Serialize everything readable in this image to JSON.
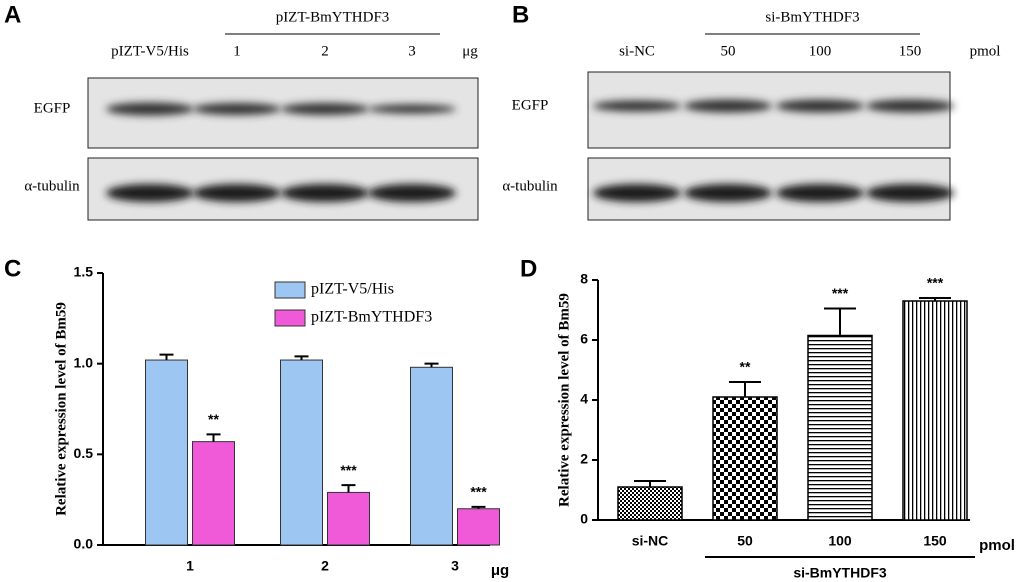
{
  "blots": [
    {
      "panel": "A",
      "group_label": "pIZT-BmYTHDF3",
      "lanes": [
        "pIZT-V5/His",
        "1",
        "2",
        "3"
      ],
      "unit": "μg",
      "rows": [
        "EGFP",
        "α-tubulin"
      ]
    },
    {
      "panel": "B",
      "group_label": "si-BmYTHDF3",
      "lanes": [
        "si-NC",
        "50",
        "100",
        "150"
      ],
      "unit": "pmol",
      "rows": [
        "EGFP",
        "α-tubulin"
      ]
    }
  ],
  "chart_data": [
    {
      "panel": "C",
      "type": "bar",
      "ylabel": "Relative expression level of Bm59",
      "xlabel": "μg",
      "categories": [
        "1",
        "2",
        "3"
      ],
      "series": [
        {
          "name": "pIZT-V5/His",
          "color": "#9ec6f2",
          "values": [
            1.02,
            1.02,
            0.98
          ],
          "errors": [
            0.03,
            0.02,
            0.02
          ]
        },
        {
          "name": "pIZT-BmYTHDF3",
          "color": "#f05ad8",
          "values": [
            0.57,
            0.29,
            0.2
          ],
          "errors": [
            0.04,
            0.04,
            0.01
          ],
          "significance": [
            "**",
            "***",
            "***"
          ]
        }
      ],
      "ylim": [
        0,
        1.5
      ],
      "yticks": [
        {
          "value": 0,
          "label": "0.0"
        },
        0.5,
        {
          "value": 1,
          "label": "1.0"
        },
        1.5
      ]
    },
    {
      "panel": "D",
      "type": "pattern-bar",
      "ylabel": "Relative expression level of Bm59",
      "xlabel": "pmol",
      "group_label": "si-BmYTHDF3",
      "categories": [
        "si-NC",
        "50",
        "100",
        "150"
      ],
      "values": [
        1.1,
        4.1,
        6.15,
        7.3
      ],
      "errors": [
        0.2,
        0.5,
        0.9,
        0.1
      ],
      "significance": [
        null,
        "**",
        "***",
        "***"
      ],
      "ylim": [
        0,
        8
      ],
      "yticks": [
        0,
        2,
        4,
        6,
        8
      ]
    }
  ]
}
